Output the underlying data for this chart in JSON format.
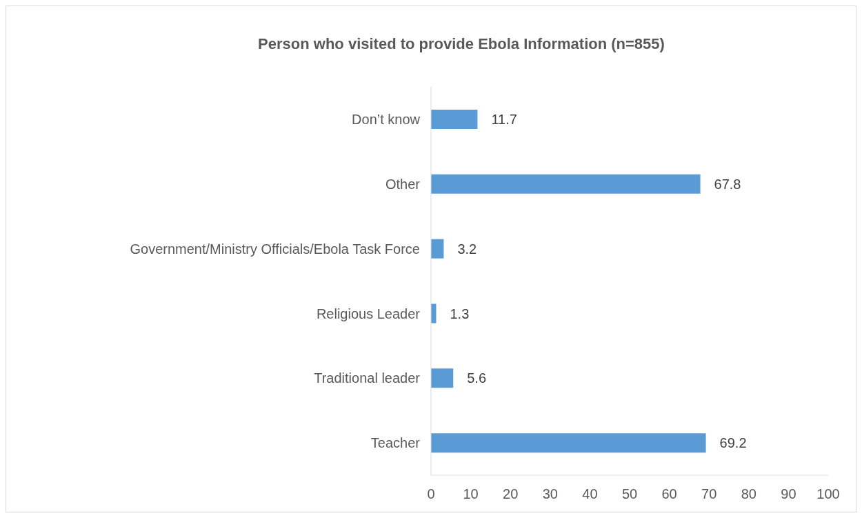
{
  "chart_data": {
    "type": "bar",
    "orientation": "horizontal",
    "title": "Person who visited to provide Ebola Information (n=855)",
    "categories": [
      "Don’t know",
      "Other",
      "Government/Ministry Officials/Ebola Task Force",
      "Religious Leader",
      "Traditional leader",
      "Teacher"
    ],
    "values": [
      11.7,
      67.8,
      3.2,
      1.3,
      5.6,
      69.2
    ],
    "color": "#5b9bd5",
    "xlim": [
      0,
      100
    ],
    "xticks": [
      0,
      10,
      20,
      30,
      40,
      50,
      60,
      70,
      80,
      90,
      100
    ],
    "grid": false,
    "data_labels": true
  }
}
